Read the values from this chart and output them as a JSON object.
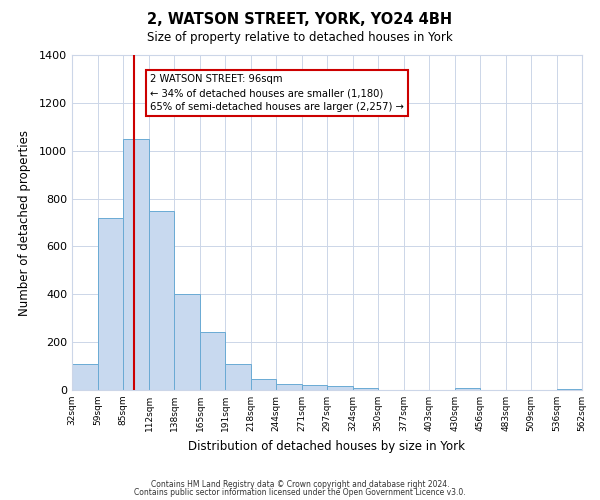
{
  "title": "2, WATSON STREET, YORK, YO24 4BH",
  "subtitle": "Size of property relative to detached houses in York",
  "xlabel": "Distribution of detached houses by size in York",
  "ylabel": "Number of detached properties",
  "bar_color": "#c8d9ef",
  "bar_edge_color": "#6aaad4",
  "background_color": "#ffffff",
  "grid_color": "#ccd6e8",
  "bins": [
    32,
    59,
    85,
    112,
    138,
    165,
    191,
    218,
    244,
    271,
    297,
    324,
    350,
    377,
    403,
    430,
    456,
    483,
    509,
    536,
    562
  ],
  "counts": [
    107,
    720,
    1050,
    750,
    400,
    243,
    110,
    47,
    27,
    22,
    17,
    10,
    0,
    0,
    0,
    10,
    0,
    0,
    0,
    5
  ],
  "property_size": 96,
  "vline_color": "#cc0000",
  "annotation_line1": "2 WATSON STREET: 96sqm",
  "annotation_line2": "← 34% of detached houses are smaller (1,180)",
  "annotation_line3": "65% of semi-detached houses are larger (2,257) →",
  "annotation_box_color": "#ffffff",
  "annotation_box_edge": "#cc0000",
  "ylim": [
    0,
    1400
  ],
  "yticks": [
    0,
    200,
    400,
    600,
    800,
    1000,
    1200,
    1400
  ],
  "footer1": "Contains HM Land Registry data © Crown copyright and database right 2024.",
  "footer2": "Contains public sector information licensed under the Open Government Licence v3.0."
}
